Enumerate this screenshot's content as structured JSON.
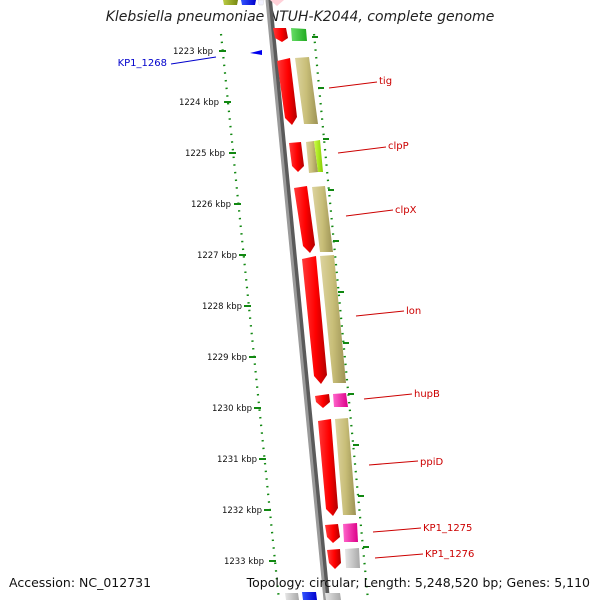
{
  "title": "Klebsiella pneumoniae NTUH-K2044, complete genome",
  "footer": {
    "accession": "Accession: NC_012731",
    "summary": "Topology: circular; Length: 5,248,520 bp; Genes: 5,110"
  },
  "colors": {
    "backbone": "#8a8a8a",
    "tick": "#118811",
    "gene_forward": "#ff0000",
    "cds_track": "#c8be78",
    "label_red": "#cc0000",
    "label_blue": "#0000cc"
  },
  "ticks": [
    "1223 kbp",
    "1224 kbp",
    "1225 kbp",
    "1226 kbp",
    "1227 kbp",
    "1228 kbp",
    "1229 kbp",
    "1230 kbp",
    "1231 kbp",
    "1232 kbp",
    "1233 kbp"
  ],
  "labels": [
    {
      "name": "KP1_1268",
      "color": "blue"
    },
    {
      "name": "tig",
      "color": "red"
    },
    {
      "name": "clpP",
      "color": "red"
    },
    {
      "name": "clpX",
      "color": "red"
    },
    {
      "name": "lon",
      "color": "red"
    },
    {
      "name": "hupB",
      "color": "red"
    },
    {
      "name": "ppiD",
      "color": "red"
    },
    {
      "name": "KP1_1275",
      "color": "red"
    },
    {
      "name": "KP1_1276",
      "color": "red"
    }
  ]
}
